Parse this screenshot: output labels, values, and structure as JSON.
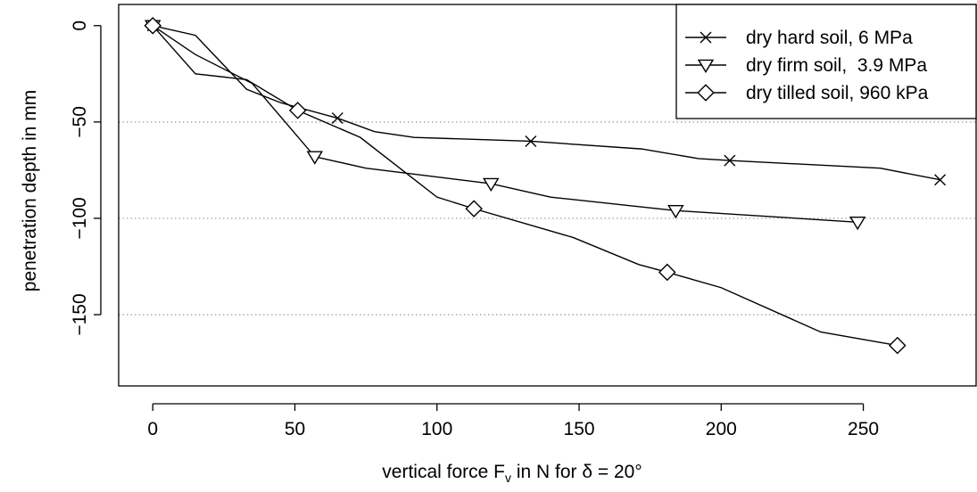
{
  "chart_data": {
    "type": "line",
    "xlabel_main": "vertical force F",
    "xlabel_sub": "v",
    "xlabel_rest": " in N for δ = 20°",
    "ylabel": "penetration depth in mm",
    "xlim": [
      -12,
      290
    ],
    "ylim": [
      -187,
      11
    ],
    "x_ticks": [
      0,
      50,
      100,
      150,
      200,
      250
    ],
    "y_ticks": [
      0,
      -50,
      -100,
      -150
    ],
    "grid": "dotted horizontal at -50, -100, -150",
    "legend_position": "top-right",
    "series": [
      {
        "name": "dry hard soil, 6 MPa",
        "marker": "cross",
        "line": [
          [
            0,
            0
          ],
          [
            15,
            -5
          ],
          [
            33,
            -33
          ],
          [
            45,
            -40
          ],
          [
            65,
            -48
          ],
          [
            78,
            -55
          ],
          [
            92,
            -58
          ],
          [
            133,
            -60
          ],
          [
            172,
            -64
          ],
          [
            192,
            -69
          ],
          [
            203,
            -70
          ],
          [
            256,
            -74
          ],
          [
            277,
            -80
          ]
        ],
        "markers": [
          [
            0,
            0
          ],
          [
            65,
            -48
          ],
          [
            133,
            -60
          ],
          [
            203,
            -70
          ],
          [
            277,
            -80
          ]
        ]
      },
      {
        "name": "dry firm soil,  3.9 MPa",
        "marker": "triangle-down",
        "line": [
          [
            0,
            0
          ],
          [
            15,
            -15
          ],
          [
            35,
            -30
          ],
          [
            57,
            -68
          ],
          [
            75,
            -74
          ],
          [
            119,
            -82
          ],
          [
            140,
            -89
          ],
          [
            184,
            -96
          ],
          [
            248,
            -102
          ]
        ],
        "markers": [
          [
            0,
            0
          ],
          [
            57,
            -68
          ],
          [
            119,
            -82
          ],
          [
            184,
            -96
          ],
          [
            248,
            -102
          ]
        ]
      },
      {
        "name": "dry tilled soil, 960 kPa",
        "marker": "diamond",
        "line": [
          [
            0,
            0
          ],
          [
            15,
            -25
          ],
          [
            33,
            -28
          ],
          [
            51,
            -44
          ],
          [
            73,
            -58
          ],
          [
            100,
            -89
          ],
          [
            113,
            -95
          ],
          [
            148,
            -110
          ],
          [
            171,
            -124
          ],
          [
            181,
            -128
          ],
          [
            200,
            -136
          ],
          [
            235,
            -159
          ],
          [
            262,
            -166
          ]
        ],
        "markers": [
          [
            0,
            0
          ],
          [
            51,
            -44
          ],
          [
            113,
            -95
          ],
          [
            181,
            -128
          ],
          [
            262,
            -166
          ]
        ]
      }
    ]
  }
}
